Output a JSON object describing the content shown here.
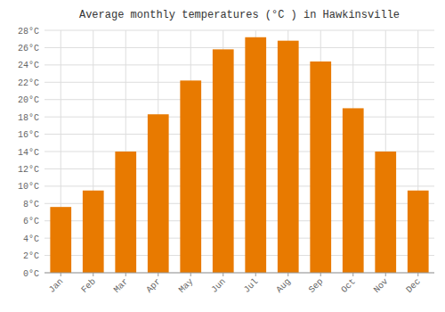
{
  "chart_data": {
    "type": "bar",
    "title": "Average monthly temperatures (°C ) in Hawkinsville",
    "categories": [
      "Jan",
      "Feb",
      "Mar",
      "Apr",
      "May",
      "Jun",
      "Jul",
      "Aug",
      "Sep",
      "Oct",
      "Nov",
      "Dec"
    ],
    "values": [
      7.6,
      9.5,
      14.0,
      18.3,
      22.2,
      25.8,
      27.2,
      26.8,
      24.4,
      19.0,
      14.0,
      9.5
    ],
    "color": "#E87A00",
    "ylim": [
      0,
      28
    ],
    "yticks": [
      {
        "value": 0,
        "label": "0°C"
      },
      {
        "value": 2,
        "label": "2°C"
      },
      {
        "value": 4,
        "label": "4°C"
      },
      {
        "value": 6,
        "label": "6°C"
      },
      {
        "value": 8,
        "label": "8°C"
      },
      {
        "value": 10,
        "label": "10°C"
      },
      {
        "value": 12,
        "label": "12°C"
      },
      {
        "value": 14,
        "label": "14°C"
      },
      {
        "value": 16,
        "label": "16°C"
      },
      {
        "value": 18,
        "label": "18°C"
      },
      {
        "value": 20,
        "label": "20°C"
      },
      {
        "value": 22,
        "label": "22°C"
      },
      {
        "value": 24,
        "label": "24°C"
      },
      {
        "value": 26,
        "label": "26°C"
      },
      {
        "value": 28,
        "label": "28°C"
      }
    ],
    "grid": true
  }
}
